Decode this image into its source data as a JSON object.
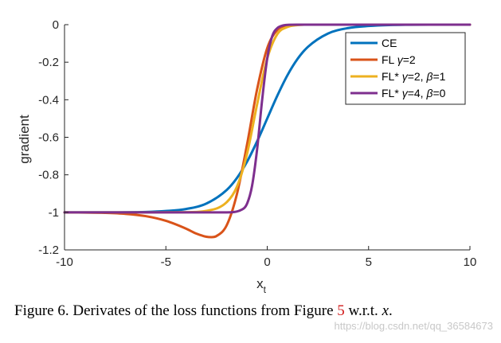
{
  "chart_data": {
    "type": "line",
    "xlabel": "x",
    "xlabel_sub": "t",
    "ylabel": "gradient",
    "xlim": [
      -10,
      10
    ],
    "ylim": [
      -1.2,
      0
    ],
    "xticks": [
      "-10",
      "-5",
      "0",
      "5",
      "10"
    ],
    "yticks": [
      "0",
      "-0.2",
      "-0.4",
      "-0.6",
      "-0.8",
      "-1",
      "-1.2"
    ],
    "grid": false,
    "legend_position": "top-right",
    "series": [
      {
        "name": "CE",
        "legend": {
          "pre": "CE",
          "post": ""
        },
        "color": "#0072BD",
        "x": [
          -10,
          -8,
          -6,
          -5,
          -4,
          -3,
          -2,
          -1.5,
          -1,
          -0.5,
          0,
          0.5,
          1,
          1.5,
          2,
          3,
          4,
          5,
          6,
          8,
          10
        ],
        "y": [
          -1.0,
          -1.0,
          -0.998,
          -0.993,
          -0.982,
          -0.953,
          -0.881,
          -0.818,
          -0.731,
          -0.622,
          -0.5,
          -0.378,
          -0.269,
          -0.182,
          -0.119,
          -0.047,
          -0.018,
          -0.007,
          -0.002,
          0.0,
          0.0
        ]
      },
      {
        "name": "FL γ=2",
        "legend": {
          "pre": "FL ",
          "post": "=2"
        },
        "color": "#D95319",
        "x": [
          -10,
          -8,
          -7,
          -6,
          -5,
          -4,
          -3.5,
          -3,
          -2.75,
          -2.5,
          -2,
          -1.5,
          -1,
          -0.5,
          0,
          0.5,
          1,
          1.5,
          2,
          3,
          4,
          10
        ],
        "y": [
          -1.0,
          -1.003,
          -1.008,
          -1.02,
          -1.045,
          -1.087,
          -1.113,
          -1.13,
          -1.132,
          -1.126,
          -1.069,
          -0.905,
          -0.641,
          -0.345,
          -0.125,
          -0.028,
          -0.005,
          -0.001,
          0.0,
          0.0,
          0.0,
          0.0
        ]
      },
      {
        "name": "FL* γ=2, β=1",
        "legend": {
          "pre": "FL* ",
          "mid": "=2, ",
          "post": "=1"
        },
        "color": "#EDB120",
        "x": [
          -10,
          -6,
          -4,
          -3,
          -2,
          -1.5,
          -1,
          -0.5,
          0,
          0.5,
          1,
          1.5,
          2,
          3,
          10
        ],
        "y": [
          -1.0,
          -1.0,
          -0.999,
          -0.992,
          -0.946,
          -0.865,
          -0.69,
          -0.425,
          -0.18,
          -0.05,
          -0.012,
          -0.002,
          0.0,
          0.0,
          0.0
        ]
      },
      {
        "name": "FL* γ=4, β=0",
        "legend": {
          "pre": "FL* ",
          "mid": "=4, ",
          "post": "=0"
        },
        "color": "#7E2F8E",
        "x": [
          -10,
          -2,
          -1.25,
          -1,
          -0.75,
          -0.5,
          -0.25,
          0,
          0.25,
          0.5,
          0.75,
          1,
          1.5,
          2,
          10
        ],
        "y": [
          -1.0,
          -1.0,
          -0.985,
          -0.955,
          -0.86,
          -0.665,
          -0.4,
          -0.18,
          -0.06,
          -0.018,
          -0.005,
          -0.001,
          0.0,
          0.0,
          0.0
        ]
      }
    ]
  },
  "caption": {
    "prefix": "Figure 6. Derivates of the loss functions from Figure ",
    "ref": "5",
    "middle": " w.r.t. ",
    "variable": "x",
    "suffix": "."
  },
  "watermark": "https://blog.csdn.net/qq_36584673"
}
